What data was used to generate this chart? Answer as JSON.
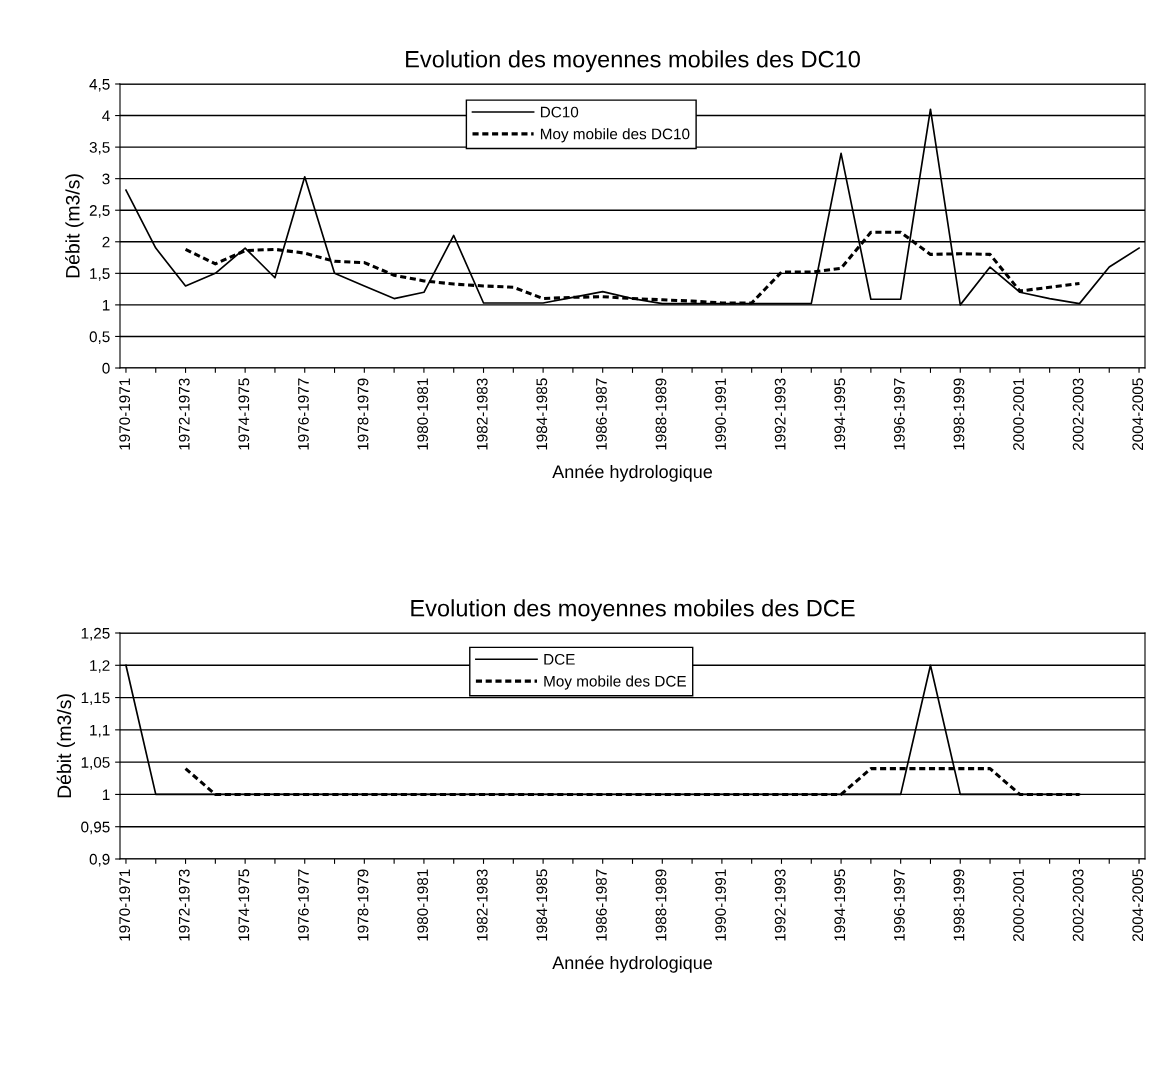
{
  "chart_data": [
    {
      "type": "line",
      "title": "Evolution des moyennes mobiles des DC10",
      "xlabel": "Année hydrologique",
      "ylabel": "Débit (m3/s)",
      "categories": [
        "1970-1971",
        null,
        "1972-1973",
        null,
        "1974-1975",
        null,
        "1976-1977",
        null,
        "1978-1979",
        null,
        "1980-1981",
        null,
        "1982-1983",
        null,
        "1984-1985",
        null,
        "1986-1987",
        null,
        "1988-1989",
        null,
        "1990-1991",
        null,
        "1992-1993",
        null,
        "1994-1995",
        null,
        "1996-1997",
        null,
        "1998-1999",
        null,
        "2000-2001",
        null,
        "2002-2003",
        null,
        "2004-2005"
      ],
      "series": [
        {
          "name": "DC10",
          "color": "#000000",
          "line_style": "solid",
          "values": [
            2.82,
            1.9,
            1.3,
            1.5,
            1.9,
            1.43,
            3.03,
            1.5,
            1.3,
            1.1,
            1.2,
            2.1,
            1.03,
            1.03,
            1.03,
            1.12,
            1.21,
            1.1,
            1.02,
            1.02,
            1.02,
            1.02,
            1.02,
            1.02,
            3.4,
            1.09,
            1.09,
            4.1,
            1.0,
            1.6,
            1.2,
            1.1,
            1.02,
            1.6,
            1.9
          ]
        },
        {
          "name": "Moy mobile des DC10",
          "color": "#000000",
          "line_style": "dashed",
          "values": [
            null,
            null,
            1.88,
            1.65,
            1.86,
            1.88,
            1.82,
            1.69,
            1.67,
            1.47,
            1.38,
            1.33,
            1.3,
            1.28,
            1.1,
            1.12,
            1.13,
            1.1,
            1.08,
            1.06,
            1.03,
            1.03,
            1.52,
            1.52,
            1.58,
            2.15,
            2.15,
            1.8,
            1.81,
            1.8,
            1.22,
            1.28,
            1.34,
            null,
            null
          ]
        }
      ],
      "ylim": [
        0,
        4.5
      ],
      "yticks": [
        0,
        {
          "value": 0.5,
          "label": "0,5"
        },
        1,
        {
          "value": 1.5,
          "label": "1,5"
        },
        2,
        {
          "value": 2.5,
          "label": "2,5"
        },
        3,
        {
          "value": 3.5,
          "label": "3,5"
        },
        4,
        {
          "value": 4.5,
          "label": "4,5"
        }
      ],
      "grid": "y",
      "legend": "top",
      "marker": "none"
    },
    {
      "type": "line",
      "title": "Evolution des moyennes mobiles des DCE",
      "xlabel": "Année hydrologique",
      "ylabel": "Débit (m3/s)",
      "categories": [
        "1970-1971",
        null,
        "1972-1973",
        null,
        "1974-1975",
        null,
        "1976-1977",
        null,
        "1978-1979",
        null,
        "1980-1981",
        null,
        "1982-1983",
        null,
        "1984-1985",
        null,
        "1986-1987",
        null,
        "1988-1989",
        null,
        "1990-1991",
        null,
        "1992-1993",
        null,
        "1994-1995",
        null,
        "1996-1997",
        null,
        "1998-1999",
        null,
        "2000-2001",
        null,
        "2002-2003",
        null,
        "2004-2005"
      ],
      "series": [
        {
          "name": "DCE",
          "color": "#000000",
          "line_style": "solid",
          "values": [
            1.2,
            1.0,
            1.0,
            1.0,
            1.0,
            1.0,
            1.0,
            1.0,
            1.0,
            1.0,
            1.0,
            1.0,
            1.0,
            1.0,
            1.0,
            1.0,
            1.0,
            1.0,
            1.0,
            1.0,
            1.0,
            1.0,
            1.0,
            1.0,
            1.0,
            1.0,
            1.0,
            1.2,
            1.0,
            1.0,
            1.0,
            1.0,
            1.0,
            null,
            null
          ]
        },
        {
          "name": "Moy mobile des DCE",
          "color": "#000000",
          "line_style": "dashed",
          "values": [
            null,
            null,
            1.04,
            1.0,
            1.0,
            1.0,
            1.0,
            1.0,
            1.0,
            1.0,
            1.0,
            1.0,
            1.0,
            1.0,
            1.0,
            1.0,
            1.0,
            1.0,
            1.0,
            1.0,
            1.0,
            1.0,
            1.0,
            1.0,
            1.0,
            1.04,
            1.04,
            1.04,
            1.04,
            1.04,
            1.0,
            1.0,
            1.0,
            null,
            null
          ]
        }
      ],
      "ylim": [
        0.9,
        1.25
      ],
      "yticks": [
        {
          "value": 0.9,
          "label": "0,9"
        },
        {
          "value": 0.95,
          "label": "0,95"
        },
        1,
        {
          "value": 1.05,
          "label": "1,05"
        },
        {
          "value": 1.1,
          "label": "1,1"
        },
        {
          "value": 1.15,
          "label": "1,15"
        },
        {
          "value": 1.2,
          "label": "1,2"
        },
        {
          "value": 1.25,
          "label": "1,25"
        }
      ],
      "grid": "y",
      "legend": "top",
      "marker": "none"
    }
  ]
}
